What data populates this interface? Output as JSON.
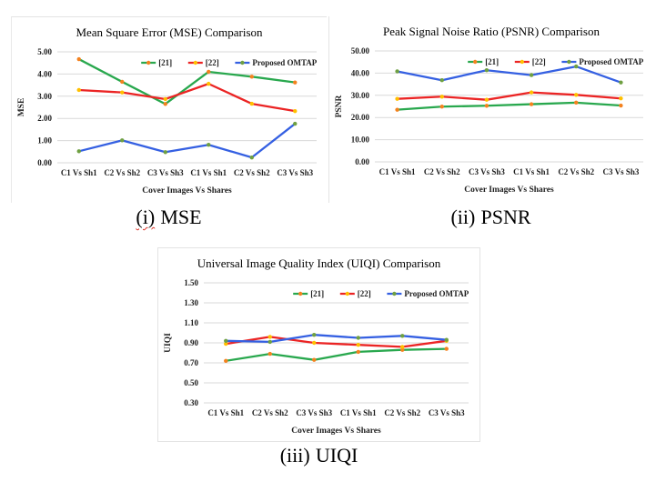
{
  "palette": {
    "series_green": "#29a84e",
    "series_red": "#eb2424",
    "series_blue": "#3560e2",
    "marker_orange": "#f4821f",
    "marker_yellow": "#ffc000",
    "marker_green": "#6fa042",
    "gridline": "#d9d9d9",
    "text": "#1e1e1e",
    "spellcheck_red": "#d93025"
  },
  "chart_data": [
    {
      "type": "line",
      "title": "Mean Square Error (MSE) Comparison",
      "xlabel": "Cover Images Vs Shares",
      "ylabel": "MSE",
      "caption_prefix": "(i)",
      "caption_label": "MSE",
      "caption_spellcheck_underline": true,
      "ylim": [
        0,
        5
      ],
      "ytick_values": [
        5,
        4,
        3,
        2,
        1,
        0
      ],
      "ytick_labels": [
        "5.00",
        "4.00",
        "3.00",
        "2.00",
        "1.00",
        "0.00"
      ],
      "grid": true,
      "legend_position": "top-right-inside",
      "categories": [
        "C1 Vs Sh1",
        "C2 Vs Sh2",
        "C3 Vs Sh3",
        "C1 Vs Sh1",
        "C2 Vs Sh2",
        "C3 Vs Sh3"
      ],
      "series": [
        {
          "name": "[21]",
          "color_key": "series_green",
          "marker_key": "marker_orange",
          "values": [
            4.67,
            3.65,
            2.65,
            4.1,
            3.88,
            3.62
          ]
        },
        {
          "name": "[22]",
          "color_key": "series_red",
          "marker_key": "marker_yellow",
          "values": [
            3.28,
            3.17,
            2.87,
            3.56,
            2.66,
            2.33
          ]
        },
        {
          "name": "Proposed OMTAP",
          "color_key": "series_blue",
          "marker_key": "marker_green",
          "values": [
            0.52,
            1.01,
            0.48,
            0.81,
            0.24,
            1.76
          ]
        }
      ]
    },
    {
      "type": "line",
      "title": "Peak Signal Noise Ratio (PSNR) Comparison",
      "xlabel": "Cover Images Vs Shares",
      "ylabel": "PSNR",
      "caption_prefix": "(ii)",
      "caption_label": "PSNR",
      "caption_spellcheck_underline": false,
      "ylim": [
        0,
        50
      ],
      "ytick_values": [
        50,
        40,
        30,
        20,
        10,
        0
      ],
      "ytick_labels": [
        "50.00",
        "40.00",
        "30.00",
        "20.00",
        "10.00",
        "0.00"
      ],
      "grid": true,
      "legend_position": "top-right-inside",
      "categories": [
        "C1 Vs Sh1",
        "C2 Vs Sh2",
        "C3 Vs Sh3",
        "C1 Vs Sh1",
        "C2 Vs Sh2",
        "C3 Vs Sh3"
      ],
      "series": [
        {
          "name": "[21]",
          "color_key": "series_green",
          "marker_key": "marker_orange",
          "values": [
            23.5,
            24.9,
            25.3,
            26.0,
            26.7,
            25.4
          ]
        },
        {
          "name": "[22]",
          "color_key": "series_red",
          "marker_key": "marker_yellow",
          "values": [
            28.4,
            29.4,
            28.0,
            31.3,
            30.2,
            28.6
          ]
        },
        {
          "name": "Proposed OMTAP",
          "color_key": "series_blue",
          "marker_key": "marker_green",
          "values": [
            40.8,
            36.8,
            41.3,
            39.1,
            43.0,
            35.8
          ]
        }
      ]
    },
    {
      "type": "line",
      "title": "Universal Image Quality Index (UIQI) Comparison",
      "xlabel": "Cover Images Vs Shares",
      "ylabel": "UIQI",
      "caption_prefix": "(iii)",
      "caption_label": "UIQI",
      "caption_spellcheck_underline": false,
      "ylim": [
        0.3,
        1.5
      ],
      "ytick_values": [
        1.5,
        1.3,
        1.1,
        0.9,
        0.7,
        0.5,
        0.3
      ],
      "ytick_labels": [
        "1.50",
        "1.30",
        "1.10",
        "0.90",
        "0.70",
        "0.50",
        "0.30"
      ],
      "grid": true,
      "legend_position": "top-right-inside",
      "categories": [
        "C1 Vs Sh1",
        "C2 Vs Sh2",
        "C3 Vs Sh3",
        "C1 Vs Sh1",
        "C2 Vs Sh2",
        "C3 Vs Sh3"
      ],
      "series": [
        {
          "name": "[21]",
          "color_key": "series_green",
          "marker_key": "marker_orange",
          "values": [
            0.72,
            0.79,
            0.73,
            0.81,
            0.83,
            0.84
          ]
        },
        {
          "name": "[22]",
          "color_key": "series_red",
          "marker_key": "marker_yellow",
          "values": [
            0.89,
            0.96,
            0.9,
            0.88,
            0.86,
            0.92
          ]
        },
        {
          "name": "Proposed OMTAP",
          "color_key": "series_blue",
          "marker_key": "marker_green",
          "values": [
            0.92,
            0.91,
            0.98,
            0.95,
            0.97,
            0.93
          ]
        }
      ]
    }
  ]
}
